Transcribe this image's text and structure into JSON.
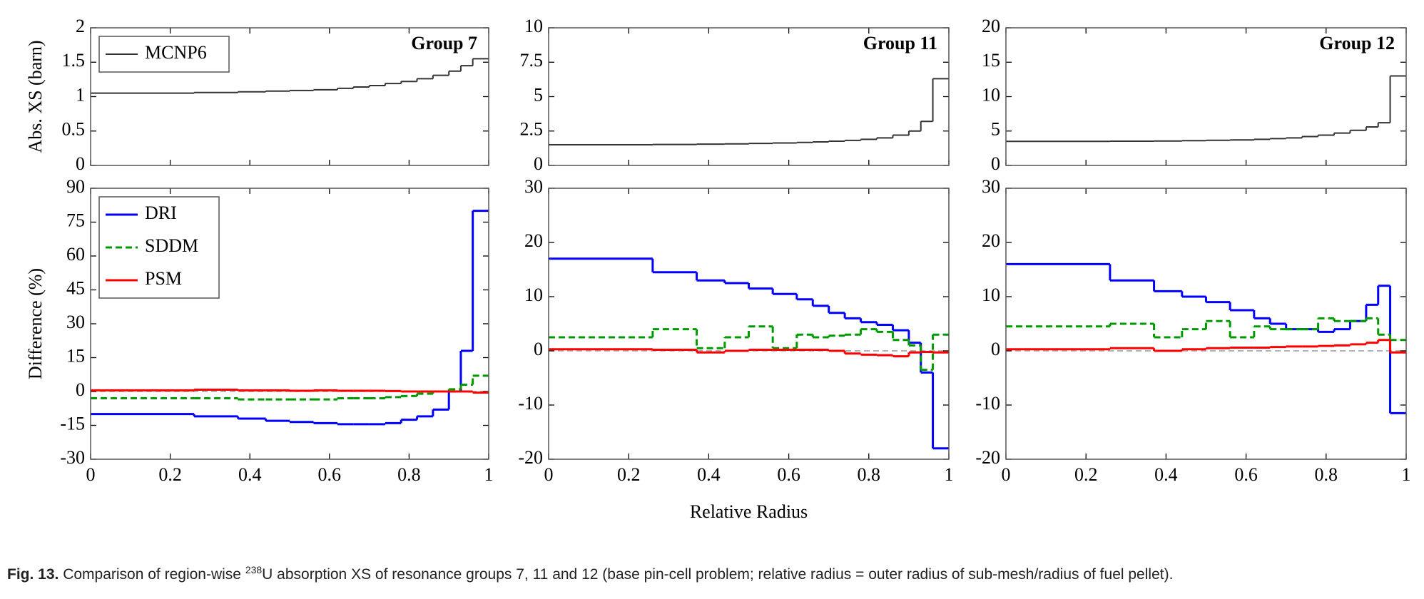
{
  "chart_data": [
    {
      "type": "step",
      "annotation": "Group 7",
      "ylabel": "Abs. XS (barn)",
      "legend": "upper left",
      "x": [
        0.26,
        0.37,
        0.44,
        0.5,
        0.56,
        0.62,
        0.66,
        0.7,
        0.74,
        0.78,
        0.82,
        0.86,
        0.9,
        0.93,
        0.96,
        1.0
      ],
      "xlim": [
        0,
        1
      ],
      "xticks": [
        0,
        0.2,
        0.4,
        0.6,
        0.8,
        1
      ],
      "ylim": [
        0,
        2
      ],
      "yticks": [
        0,
        0.5,
        1,
        1.5,
        2
      ],
      "series": [
        {
          "name": "MCNP6",
          "color": "#333333",
          "linestyle": "solid",
          "values": [
            1.05,
            1.06,
            1.07,
            1.08,
            1.09,
            1.1,
            1.12,
            1.14,
            1.16,
            1.19,
            1.22,
            1.26,
            1.31,
            1.37,
            1.45,
            1.55
          ]
        }
      ]
    },
    {
      "type": "step",
      "annotation": "Group 11",
      "legend": false,
      "x": [
        0.26,
        0.37,
        0.44,
        0.5,
        0.56,
        0.62,
        0.66,
        0.7,
        0.74,
        0.78,
        0.82,
        0.86,
        0.9,
        0.93,
        0.96,
        1.0
      ],
      "xlim": [
        0,
        1
      ],
      "xticks": [
        0,
        0.2,
        0.4,
        0.6,
        0.8,
        1
      ],
      "ylim": [
        0,
        10
      ],
      "yticks": [
        0,
        2.5,
        5,
        7.5,
        10
      ],
      "series": [
        {
          "name": "MCNP6",
          "color": "#333333",
          "linestyle": "solid",
          "values": [
            1.5,
            1.52,
            1.55,
            1.57,
            1.6,
            1.63,
            1.67,
            1.71,
            1.76,
            1.82,
            1.9,
            2.0,
            2.2,
            2.5,
            3.2,
            6.3
          ]
        }
      ]
    },
    {
      "type": "step",
      "annotation": "Group 12",
      "legend": false,
      "x": [
        0.26,
        0.37,
        0.44,
        0.5,
        0.56,
        0.62,
        0.66,
        0.7,
        0.74,
        0.78,
        0.82,
        0.86,
        0.9,
        0.93,
        0.96,
        1.0
      ],
      "xlim": [
        0,
        1
      ],
      "xticks": [
        0,
        0.2,
        0.4,
        0.6,
        0.8,
        1
      ],
      "ylim": [
        0,
        20
      ],
      "yticks": [
        0,
        5,
        10,
        15,
        20
      ],
      "series": [
        {
          "name": "MCNP6",
          "color": "#333333",
          "linestyle": "solid",
          "values": [
            3.5,
            3.52,
            3.55,
            3.6,
            3.65,
            3.7,
            3.8,
            3.9,
            4,
            4.2,
            4.4,
            4.7,
            5.1,
            5.6,
            6.2,
            13
          ]
        }
      ]
    },
    {
      "type": "step",
      "ylabel": "Difference (%)",
      "legend": "upper left",
      "x": [
        0.26,
        0.37,
        0.44,
        0.5,
        0.56,
        0.62,
        0.66,
        0.7,
        0.74,
        0.78,
        0.82,
        0.86,
        0.9,
        0.93,
        0.96,
        1.0
      ],
      "xlim": [
        0,
        1
      ],
      "xticks": [
        0,
        0.2,
        0.4,
        0.6,
        0.8,
        1
      ],
      "ylim": [
        -30,
        90
      ],
      "yticks": [
        -30,
        -15,
        0,
        15,
        30,
        45,
        60,
        75,
        90
      ],
      "series": [
        {
          "name": "DRI",
          "color": "#0000ff",
          "linestyle": "solid",
          "values": [
            -10,
            -11,
            -12,
            -13,
            -13.5,
            -14,
            -14.5,
            -14.5,
            -14.5,
            -14,
            -12.5,
            -11,
            -8,
            0,
            18,
            80
          ]
        },
        {
          "name": "SDDM",
          "color": "#009900",
          "linestyle": "dashed",
          "values": [
            -3,
            -3,
            -3.5,
            -3.5,
            -3.5,
            -3.5,
            -3,
            -3,
            -3,
            -2.5,
            -2,
            -1,
            0,
            1,
            3,
            7
          ]
        },
        {
          "name": "PSM",
          "color": "#ff0000",
          "linestyle": "solid",
          "values": [
            0.5,
            0.8,
            0.5,
            0.5,
            0.3,
            0.5,
            0.3,
            0.3,
            0.3,
            0.2,
            0,
            0,
            0,
            0,
            0,
            -0.5
          ]
        }
      ]
    },
    {
      "type": "step",
      "xlabel": "Relative Radius",
      "legend": false,
      "x": [
        0.26,
        0.37,
        0.44,
        0.5,
        0.56,
        0.62,
        0.66,
        0.7,
        0.74,
        0.78,
        0.82,
        0.86,
        0.9,
        0.93,
        0.96,
        1.0
      ],
      "xlim": [
        0,
        1
      ],
      "xticks": [
        0,
        0.2,
        0.4,
        0.6,
        0.8,
        1
      ],
      "ylim": [
        -20,
        30
      ],
      "yticks": [
        -20,
        -10,
        0,
        10,
        20,
        30
      ],
      "series": [
        {
          "name": "DRI",
          "color": "#0000ff",
          "linestyle": "solid",
          "values": [
            17,
            14.5,
            13,
            12.5,
            11.5,
            10.5,
            9.5,
            8.3,
            7,
            6,
            5.3,
            4.8,
            3.8,
            1.5,
            -4,
            -18
          ]
        },
        {
          "name": "SDDM",
          "color": "#009900",
          "linestyle": "dashed",
          "values": [
            2.5,
            4,
            0.5,
            2.5,
            4.5,
            0.5,
            3,
            2.5,
            2.8,
            3,
            4,
            3.5,
            2,
            1,
            -3.5,
            3
          ]
        },
        {
          "name": "PSM",
          "color": "#ff0000",
          "linestyle": "solid",
          "values": [
            0.3,
            0.2,
            -0.3,
            0,
            0.2,
            0.2,
            0.2,
            0.2,
            0,
            -0.5,
            -0.7,
            -0.8,
            -1,
            -0.3,
            -0.2,
            -0.3
          ]
        }
      ]
    },
    {
      "type": "step",
      "legend": false,
      "x": [
        0.26,
        0.37,
        0.44,
        0.5,
        0.56,
        0.62,
        0.66,
        0.7,
        0.74,
        0.78,
        0.82,
        0.86,
        0.9,
        0.93,
        0.96,
        1.0
      ],
      "xlim": [
        0,
        1
      ],
      "xticks": [
        0,
        0.2,
        0.4,
        0.6,
        0.8,
        1
      ],
      "ylim": [
        -20,
        30
      ],
      "yticks": [
        -20,
        -10,
        0,
        10,
        20,
        30
      ],
      "series": [
        {
          "name": "DRI",
          "color": "#0000ff",
          "linestyle": "solid",
          "values": [
            16,
            13,
            11,
            10,
            9,
            7.5,
            6,
            5,
            4,
            4,
            3.5,
            4,
            5.5,
            8.5,
            12,
            -11.5
          ]
        },
        {
          "name": "SDDM",
          "color": "#009900",
          "linestyle": "dashed",
          "values": [
            4.5,
            5,
            2.5,
            4,
            5.5,
            2.5,
            4.5,
            4,
            4,
            4,
            6,
            5.5,
            5.5,
            6,
            3,
            2
          ]
        },
        {
          "name": "PSM",
          "color": "#ff0000",
          "linestyle": "solid",
          "values": [
            0.3,
            0.5,
            0,
            0.3,
            0.5,
            0.6,
            0.6,
            0.7,
            0.8,
            0.8,
            0.9,
            1,
            1.2,
            1.5,
            2,
            -0.3
          ]
        }
      ]
    }
  ],
  "caption": {
    "label": "Fig. 13.",
    "text_before": " Comparison of region-wise ",
    "superscript": "238",
    "text_after": "U absorption XS of resonance groups 7, 11 and 12 (base pin-cell problem; relative radius = outer radius of sub-mesh/radius of fuel pellet)."
  }
}
